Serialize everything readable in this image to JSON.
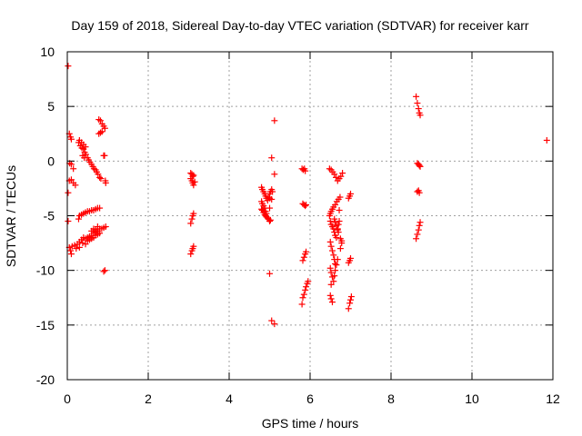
{
  "chart_data": {
    "type": "scatter",
    "title": "Day 159 of 2018, Sidereal Day-to-day VTEC variation (SDTVAR) for receiver karr",
    "xlabel": "GPS time / hours",
    "ylabel": "SDTVAR / TECUs",
    "xlim": [
      0,
      12
    ],
    "ylim": [
      -20,
      10
    ],
    "xticks": [
      "0",
      "2",
      "4",
      "6",
      "8",
      "10",
      "12"
    ],
    "yticks": [
      "10",
      "5",
      "0",
      "-5",
      "-10",
      "-15",
      "-20"
    ],
    "grid": true,
    "marker": "+",
    "color": "#ff0000",
    "points": [
      [
        0.02,
        8.7
      ],
      [
        0.02,
        -2.9
      ],
      [
        0.02,
        -5.5
      ],
      [
        0.05,
        2.5
      ],
      [
        0.08,
        2.2
      ],
      [
        0.1,
        2.0
      ],
      [
        0.06,
        -0.2
      ],
      [
        0.1,
        -0.3
      ],
      [
        0.15,
        -0.7
      ],
      [
        0.05,
        -1.8
      ],
      [
        0.1,
        -1.7
      ],
      [
        0.15,
        -2.0
      ],
      [
        0.2,
        -2.2
      ],
      [
        0.05,
        -7.9
      ],
      [
        0.08,
        -8.2
      ],
      [
        0.1,
        -8.5
      ],
      [
        0.12,
        -7.8
      ],
      [
        0.18,
        -7.7
      ],
      [
        0.22,
        -8.0
      ],
      [
        0.25,
        -7.6
      ],
      [
        0.3,
        -7.4
      ],
      [
        0.35,
        -7.2
      ],
      [
        0.4,
        -7.0
      ],
      [
        0.3,
        -7.9
      ],
      [
        0.38,
        -7.5
      ],
      [
        0.45,
        -7.1
      ],
      [
        0.5,
        -7.0
      ],
      [
        0.55,
        -6.9
      ],
      [
        0.6,
        -6.8
      ],
      [
        0.65,
        -6.6
      ],
      [
        0.7,
        -6.5
      ],
      [
        0.75,
        -6.4
      ],
      [
        0.8,
        -6.2
      ],
      [
        0.85,
        -6.2
      ],
      [
        0.9,
        -6.1
      ],
      [
        0.95,
        -6.0
      ],
      [
        0.45,
        -7.6
      ],
      [
        0.5,
        -7.3
      ],
      [
        0.55,
        -7.2
      ],
      [
        0.6,
        -7.1
      ],
      [
        0.65,
        -7.0
      ],
      [
        0.7,
        -6.8
      ],
      [
        0.75,
        -6.7
      ],
      [
        0.8,
        -6.6
      ],
      [
        0.6,
        -6.4
      ],
      [
        0.65,
        -6.2
      ],
      [
        0.7,
        -6.3
      ],
      [
        0.75,
        -6.0
      ],
      [
        0.28,
        -5.3
      ],
      [
        0.3,
        -5.0
      ],
      [
        0.35,
        -4.9
      ],
      [
        0.4,
        -4.8
      ],
      [
        0.45,
        -4.7
      ],
      [
        0.5,
        -4.6
      ],
      [
        0.55,
        -4.6
      ],
      [
        0.6,
        -4.5
      ],
      [
        0.65,
        -4.5
      ],
      [
        0.7,
        -4.4
      ],
      [
        0.75,
        -4.3
      ],
      [
        0.8,
        -4.3
      ],
      [
        0.28,
        1.7
      ],
      [
        0.32,
        1.4
      ],
      [
        0.36,
        1.2
      ],
      [
        0.4,
        1.1
      ],
      [
        0.43,
        0.8
      ],
      [
        0.46,
        0.6
      ],
      [
        0.5,
        0.3
      ],
      [
        0.53,
        0.1
      ],
      [
        0.56,
        -0.1
      ],
      [
        0.6,
        -0.3
      ],
      [
        0.63,
        -0.5
      ],
      [
        0.66,
        -0.7
      ],
      [
        0.7,
        -0.8
      ],
      [
        0.73,
        -1.0
      ],
      [
        0.76,
        -1.2
      ],
      [
        0.8,
        -1.5
      ],
      [
        0.83,
        -1.6
      ],
      [
        0.3,
        1.9
      ],
      [
        0.35,
        1.7
      ],
      [
        0.4,
        1.5
      ],
      [
        0.45,
        1.3
      ],
      [
        0.38,
        0.5
      ],
      [
        0.42,
        0.3
      ],
      [
        0.78,
        3.8
      ],
      [
        0.82,
        3.7
      ],
      [
        0.86,
        3.4
      ],
      [
        0.9,
        3.2
      ],
      [
        0.93,
        3.0
      ],
      [
        0.78,
        2.5
      ],
      [
        0.82,
        2.6
      ],
      [
        0.86,
        2.7
      ],
      [
        0.9,
        0.5
      ],
      [
        0.92,
        0.5
      ],
      [
        0.94,
        -1.8
      ],
      [
        0.95,
        -2.0
      ],
      [
        0.9,
        -10.1
      ],
      [
        0.93,
        -10.0
      ],
      [
        3.05,
        -1.1
      ],
      [
        3.08,
        -1.2
      ],
      [
        3.1,
        -1.4
      ],
      [
        3.12,
        -1.3
      ],
      [
        3.05,
        -1.6
      ],
      [
        3.08,
        -1.8
      ],
      [
        3.1,
        -2.0
      ],
      [
        3.12,
        -2.2
      ],
      [
        3.15,
        -1.9
      ],
      [
        3.05,
        -5.7
      ],
      [
        3.08,
        -5.3
      ],
      [
        3.1,
        -5.0
      ],
      [
        3.12,
        -4.8
      ],
      [
        3.05,
        -8.5
      ],
      [
        3.08,
        -8.2
      ],
      [
        3.1,
        -8.0
      ],
      [
        3.12,
        -7.8
      ],
      [
        4.8,
        -2.4
      ],
      [
        4.82,
        -2.6
      ],
      [
        4.85,
        -2.8
      ],
      [
        4.88,
        -3.0
      ],
      [
        4.9,
        -3.2
      ],
      [
        4.92,
        -3.4
      ],
      [
        4.95,
        -3.6
      ],
      [
        4.97,
        -3.3
      ],
      [
        5.0,
        -3.0
      ],
      [
        5.02,
        -2.8
      ],
      [
        5.05,
        -2.6
      ],
      [
        5.07,
        -2.8
      ],
      [
        5.0,
        -3.4
      ],
      [
        5.05,
        -3.5
      ],
      [
        4.8,
        -3.7
      ],
      [
        4.82,
        -3.9
      ],
      [
        4.85,
        -4.1
      ],
      [
        4.88,
        -4.3
      ],
      [
        4.8,
        -4.4
      ],
      [
        4.82,
        -4.5
      ],
      [
        4.85,
        -4.7
      ],
      [
        4.88,
        -4.9
      ],
      [
        4.9,
        -5.0
      ],
      [
        4.92,
        -5.1
      ],
      [
        4.95,
        -5.2
      ],
      [
        4.97,
        -5.3
      ],
      [
        5.0,
        -5.5
      ],
      [
        5.02,
        -5.4
      ],
      [
        4.9,
        -4.6
      ],
      [
        4.92,
        -4.8
      ],
      [
        5.0,
        -4.3
      ],
      [
        5.05,
        0.3
      ],
      [
        5.0,
        -10.3
      ],
      [
        5.05,
        -14.6
      ],
      [
        5.12,
        -14.9
      ],
      [
        5.12,
        3.7
      ],
      [
        5.12,
        -1.2
      ],
      [
        5.8,
        -0.7
      ],
      [
        5.83,
        -0.8
      ],
      [
        5.86,
        -0.7
      ],
      [
        5.88,
        -0.9
      ],
      [
        5.82,
        -3.9
      ],
      [
        5.85,
        -4.0
      ],
      [
        5.88,
        -4.1
      ],
      [
        5.9,
        -4.0
      ],
      [
        5.82,
        -9.1
      ],
      [
        5.85,
        -8.8
      ],
      [
        5.88,
        -8.5
      ],
      [
        5.9,
        -8.3
      ],
      [
        5.8,
        -13.1
      ],
      [
        5.82,
        -12.5
      ],
      [
        5.85,
        -12.2
      ],
      [
        5.88,
        -11.8
      ],
      [
        5.9,
        -11.5
      ],
      [
        5.93,
        -11.2
      ],
      [
        5.95,
        -11.0
      ],
      [
        6.48,
        -0.7
      ],
      [
        6.52,
        -0.8
      ],
      [
        6.56,
        -1.0
      ],
      [
        6.6,
        -1.2
      ],
      [
        6.64,
        -1.5
      ],
      [
        6.68,
        -1.8
      ],
      [
        6.72,
        -1.6
      ],
      [
        6.76,
        -1.4
      ],
      [
        6.8,
        -1.1
      ],
      [
        6.48,
        -5.0
      ],
      [
        6.5,
        -4.8
      ],
      [
        6.52,
        -4.6
      ],
      [
        6.55,
        -4.4
      ],
      [
        6.58,
        -4.2
      ],
      [
        6.62,
        -4.0
      ],
      [
        6.66,
        -3.7
      ],
      [
        6.7,
        -3.5
      ],
      [
        6.74,
        -3.3
      ],
      [
        6.5,
        -5.5
      ],
      [
        6.52,
        -5.8
      ],
      [
        6.55,
        -6.0
      ],
      [
        6.58,
        -6.2
      ],
      [
        6.6,
        -6.5
      ],
      [
        6.62,
        -6.8
      ],
      [
        6.65,
        -7.0
      ],
      [
        6.68,
        -6.3
      ],
      [
        6.7,
        -5.8
      ],
      [
        6.72,
        -5.5
      ],
      [
        6.5,
        -7.4
      ],
      [
        6.52,
        -7.8
      ],
      [
        6.55,
        -8.2
      ],
      [
        6.58,
        -8.6
      ],
      [
        6.6,
        -9.0
      ],
      [
        6.62,
        -9.4
      ],
      [
        6.5,
        -9.8
      ],
      [
        6.52,
        -10.2
      ],
      [
        6.55,
        -10.6
      ],
      [
        6.58,
        -11.0
      ],
      [
        6.52,
        -11.3
      ],
      [
        6.5,
        -12.3
      ],
      [
        6.52,
        -12.6
      ],
      [
        6.55,
        -12.9
      ],
      [
        6.6,
        -5.3
      ],
      [
        6.62,
        -5.6
      ],
      [
        6.65,
        -5.9
      ],
      [
        6.68,
        -6.2
      ],
      [
        6.7,
        -6.5
      ],
      [
        6.75,
        -7.1
      ],
      [
        6.78,
        -7.3
      ],
      [
        6.6,
        -10.5
      ],
      [
        6.62,
        -10.0
      ],
      [
        6.65,
        -9.5
      ],
      [
        6.68,
        -9.0
      ],
      [
        6.75,
        -8.0
      ],
      [
        6.78,
        -7.5
      ],
      [
        6.72,
        -4.5
      ],
      [
        6.95,
        -13.5
      ],
      [
        6.98,
        -13.0
      ],
      [
        7.0,
        -12.7
      ],
      [
        7.02,
        -12.4
      ],
      [
        6.95,
        -9.3
      ],
      [
        6.98,
        -9.1
      ],
      [
        7.0,
        -8.9
      ],
      [
        6.95,
        -3.4
      ],
      [
        6.98,
        -3.2
      ],
      [
        7.0,
        -3.0
      ],
      [
        8.62,
        5.9
      ],
      [
        8.65,
        5.3
      ],
      [
        8.68,
        4.8
      ],
      [
        8.7,
        4.4
      ],
      [
        8.72,
        4.2
      ],
      [
        8.65,
        -0.2
      ],
      [
        8.68,
        -0.3
      ],
      [
        8.7,
        -0.4
      ],
      [
        8.72,
        -0.5
      ],
      [
        8.65,
        -2.8
      ],
      [
        8.68,
        -2.7
      ],
      [
        8.7,
        -2.9
      ],
      [
        8.62,
        -7.1
      ],
      [
        8.65,
        -6.7
      ],
      [
        8.68,
        -6.3
      ],
      [
        8.7,
        -5.9
      ],
      [
        8.72,
        -5.6
      ],
      [
        11.85,
        1.9
      ]
    ]
  }
}
